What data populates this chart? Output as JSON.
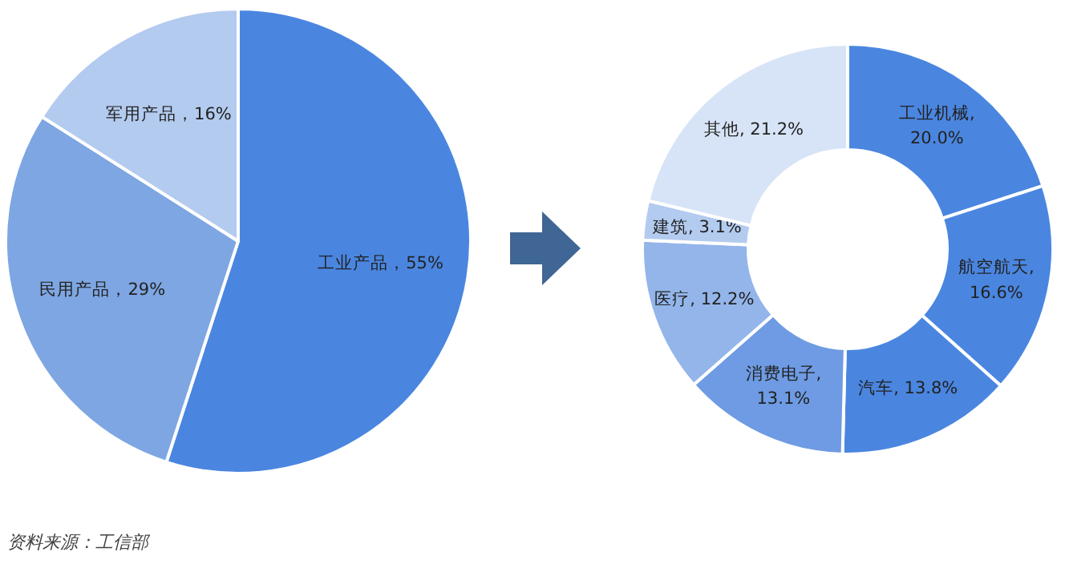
{
  "chart_data": [
    {
      "type": "pie",
      "categories": [
        "工业产品",
        "民用产品",
        "军用产品"
      ],
      "values": [
        55,
        29,
        16
      ],
      "colors": [
        "#4a86e0",
        "#7ea6e2",
        "#b3cbef"
      ],
      "value_labels": [
        "，55%",
        "，29%",
        "，16%"
      ],
      "annotations": [
        "资料来源：工信部"
      ]
    },
    {
      "type": "donut",
      "categories": [
        "工业机械",
        "航空航天",
        "汽车",
        "消费电子",
        "医疗",
        "建筑",
        "其他"
      ],
      "values": [
        20.0,
        16.6,
        13.8,
        13.1,
        12.2,
        3.1,
        21.2
      ],
      "colors": [
        "#4a86e0",
        "#4a86e0",
        "#4a86e0",
        "#6e9be3",
        "#93b5ea",
        "#b3cbef",
        "#d7e4f7"
      ],
      "value_labels": [
        ",\n20.0%",
        ",\n16.6%",
        ", 13.8%",
        ",\n13.1%",
        ", 12.2%",
        ", 3.1%",
        ", 21.2%"
      ]
    }
  ]
}
